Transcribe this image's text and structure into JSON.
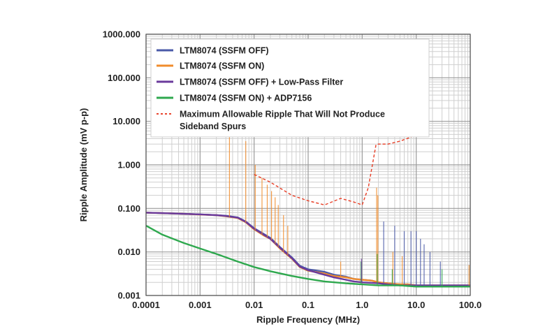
{
  "chart_data": {
    "type": "line",
    "title": "",
    "xlabel": "Ripple Frequency (MHz)",
    "ylabel": "Ripple Amplitude (mV p-p)",
    "x_scale": "log",
    "y_scale": "log",
    "xlim": [
      0.0001,
      100
    ],
    "ylim": [
      0.001,
      1000
    ],
    "grid": true,
    "legend_position": "top",
    "x_tick_labels": [
      "0.0001",
      "0.001",
      "0.01",
      "0.1",
      "1.0",
      "10.0",
      "100.0"
    ],
    "y_tick_labels": [
      "0.001",
      "0.010",
      "0.100",
      "1.000",
      "10.000",
      "100.000",
      "1000.000"
    ],
    "series": [
      {
        "name": "LTM8074 (SSFM OFF)",
        "color": "#4a5aa8",
        "x": [
          0.0001,
          0.0002,
          0.0005,
          0.001,
          0.002,
          0.003,
          0.005,
          0.007,
          0.01,
          0.015,
          0.02,
          0.03,
          0.05,
          0.07,
          0.1,
          0.2,
          0.3,
          0.5,
          0.7,
          1.0,
          1.5,
          2.0,
          3.0,
          5.0,
          7.0,
          10.0,
          20.0,
          30.0,
          50.0,
          100.0
        ],
        "y": [
          0.08,
          0.078,
          0.075,
          0.073,
          0.07,
          0.068,
          0.062,
          0.05,
          0.035,
          0.026,
          0.021,
          0.013,
          0.0075,
          0.0048,
          0.004,
          0.0035,
          0.003,
          0.0027,
          0.0024,
          0.0023,
          0.0022,
          0.002,
          0.0019,
          0.0018,
          0.0018,
          0.0017,
          0.0017,
          0.0017,
          0.0017,
          0.0017
        ]
      },
      {
        "name": "LTM8074 (SSFM ON)",
        "color": "#f08c2c",
        "x": [
          0.0001,
          0.0002,
          0.0005,
          0.001,
          0.002,
          0.003,
          0.005,
          0.007,
          0.01,
          0.015,
          0.02,
          0.03,
          0.05,
          0.07,
          0.1,
          0.2,
          0.3,
          0.5,
          0.7,
          1.0,
          1.5,
          2.0,
          3.0,
          5.0,
          7.0,
          10.0,
          20.0,
          30.0,
          50.0,
          100.0
        ],
        "y": [
          0.08,
          0.078,
          0.075,
          0.072,
          0.07,
          0.066,
          0.06,
          0.048,
          0.033,
          0.024,
          0.02,
          0.012,
          0.007,
          0.0045,
          0.0037,
          0.0032,
          0.0028,
          0.0026,
          0.0024,
          0.0023,
          0.0022,
          0.002,
          0.0019,
          0.0018,
          0.0018,
          0.0017,
          0.0017,
          0.0017,
          0.0017,
          0.0017
        ]
      },
      {
        "name": "LTM8074 (SSFM OFF) + Low-Pass Filter",
        "color": "#6a3a9c",
        "x": [
          0.0001,
          0.0002,
          0.0005,
          0.001,
          0.002,
          0.003,
          0.005,
          0.007,
          0.01,
          0.015,
          0.02,
          0.03,
          0.05,
          0.07,
          0.1,
          0.2,
          0.3,
          0.5,
          0.7,
          1.0,
          2.0,
          3.0,
          5.0,
          10.0,
          20.0,
          50.0,
          100.0
        ],
        "y": [
          0.08,
          0.078,
          0.075,
          0.073,
          0.07,
          0.067,
          0.061,
          0.049,
          0.034,
          0.025,
          0.02,
          0.0125,
          0.0072,
          0.0046,
          0.0038,
          0.003,
          0.0026,
          0.0023,
          0.0021,
          0.002,
          0.0019,
          0.0018,
          0.0017,
          0.0017,
          0.0017,
          0.0017,
          0.0017
        ]
      },
      {
        "name": "LTM8074 (SSFM ON) + ADP7156",
        "color": "#2ea84e",
        "x": [
          0.0001,
          0.0002,
          0.0005,
          0.001,
          0.002,
          0.005,
          0.01,
          0.02,
          0.05,
          0.1,
          0.2,
          0.5,
          1.0,
          2.0,
          5.0,
          10.0,
          20.0,
          50.0,
          100.0
        ],
        "y": [
          0.04,
          0.025,
          0.016,
          0.012,
          0.009,
          0.006,
          0.0045,
          0.0036,
          0.0028,
          0.0024,
          0.0021,
          0.0019,
          0.0018,
          0.0017,
          0.0017,
          0.0016,
          0.0016,
          0.0016,
          0.0016
        ]
      },
      {
        "name": "Maximum Allowable Ripple That Will Not Produce Sideband Spurs",
        "color": "#e8452e",
        "dashed": true,
        "x": [
          0.01,
          0.02,
          0.05,
          0.1,
          0.2,
          0.4,
          0.7,
          1.0,
          1.3,
          1.8,
          2.0,
          3.0,
          5.0,
          10.0
        ],
        "y": [
          0.6,
          0.4,
          0.2,
          0.15,
          0.12,
          0.17,
          0.14,
          0.12,
          0.3,
          2.9,
          3.0,
          3.0,
          3.5,
          4.8
        ]
      }
    ],
    "spurs": [
      {
        "series": 1,
        "x": 0.0035,
        "y": 30
      },
      {
        "series": 1,
        "x": 0.007,
        "y": 3.5
      },
      {
        "series": 1,
        "x": 0.0105,
        "y": 1.0
      },
      {
        "series": 1,
        "x": 0.014,
        "y": 0.5
      },
      {
        "series": 1,
        "x": 0.0175,
        "y": 0.35
      },
      {
        "series": 1,
        "x": 0.021,
        "y": 0.25
      },
      {
        "series": 1,
        "x": 0.0245,
        "y": 0.18
      },
      {
        "series": 1,
        "x": 0.028,
        "y": 0.12
      },
      {
        "series": 1,
        "x": 0.035,
        "y": 0.07
      },
      {
        "series": 1,
        "x": 0.042,
        "y": 0.04
      },
      {
        "series": 1,
        "x": 0.4,
        "y": 0.006
      },
      {
        "series": 1,
        "x": 1.85,
        "y": 0.3
      },
      {
        "series": 1,
        "x": 1.95,
        "y": 0.2
      },
      {
        "series": 1,
        "x": 3.7,
        "y": 0.01
      },
      {
        "series": 1,
        "x": 5.5,
        "y": 0.008
      },
      {
        "series": 1,
        "x": 95.0,
        "y": 0.005
      },
      {
        "series": 0,
        "x": 2.5,
        "y": 0.05
      },
      {
        "series": 0,
        "x": 4.0,
        "y": 0.04
      },
      {
        "series": 0,
        "x": 6.0,
        "y": 0.03
      },
      {
        "series": 0,
        "x": 8.0,
        "y": 0.03
      },
      {
        "series": 0,
        "x": 10.0,
        "y": 0.03
      },
      {
        "series": 0,
        "x": 12.0,
        "y": 0.02
      },
      {
        "series": 0,
        "x": 14.0,
        "y": 0.015
      },
      {
        "series": 0,
        "x": 18.0,
        "y": 0.01
      },
      {
        "series": 0,
        "x": 28.0,
        "y": 0.006
      },
      {
        "series": 3,
        "x": 0.95,
        "y": 0.006
      },
      {
        "series": 3,
        "x": 1.9,
        "y": 0.009
      },
      {
        "series": 3,
        "x": 3.6,
        "y": 0.004
      },
      {
        "series": 3,
        "x": 30.0,
        "y": 0.004
      },
      {
        "series": 2,
        "x": 0.97,
        "y": 0.007
      }
    ]
  }
}
